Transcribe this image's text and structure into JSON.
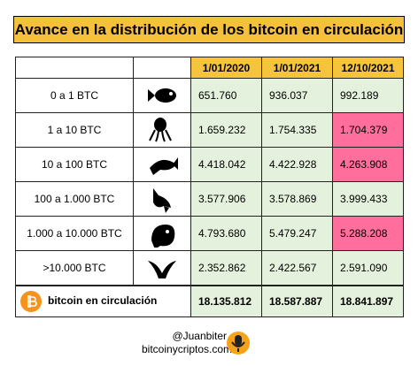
{
  "header": {
    "title": "Avance en la distribución de los bitcoin en circulación"
  },
  "table": {
    "columns": [
      "1/01/2020",
      "1/01/2021",
      "12/10/2021"
    ],
    "header_color": "#f6c33c",
    "cell_color": "#e4f1dc",
    "highlight_color": "#ff6e9c",
    "rows": [
      {
        "label": "0 a 1 BTC",
        "values": [
          "651.760",
          "936.037",
          "992.189"
        ]
      },
      {
        "label": "1 a 10 BTC",
        "values": [
          "1.659.232",
          "1.754.335",
          "1.704.379"
        ],
        "highlight": [
          2
        ]
      },
      {
        "label": "10 a 100 BTC",
        "values": [
          "4.418.042",
          "4.422.928",
          "4.263.908"
        ],
        "highlight": [
          2
        ]
      },
      {
        "label": "100 a 1.000 BTC",
        "values": [
          "3.577.906",
          "3.578.869",
          "3.999.433"
        ]
      },
      {
        "label": "1.000 a 10.000 BTC",
        "values": [
          "4.793.680",
          "5.479.247",
          "5.288.208"
        ],
        "highlight": [
          2
        ]
      },
      {
        "label": ">10.000 BTC",
        "values": [
          "2.352.862",
          "2.422.567",
          "2.591.090"
        ]
      }
    ],
    "total": {
      "label": "bitcoin en circulación",
      "values": [
        "18.135.812",
        "18.587.887",
        "18.841.897"
      ]
    }
  },
  "footer": {
    "handle": "@Juanbiter",
    "site": "bitcoinycriptos.com"
  }
}
